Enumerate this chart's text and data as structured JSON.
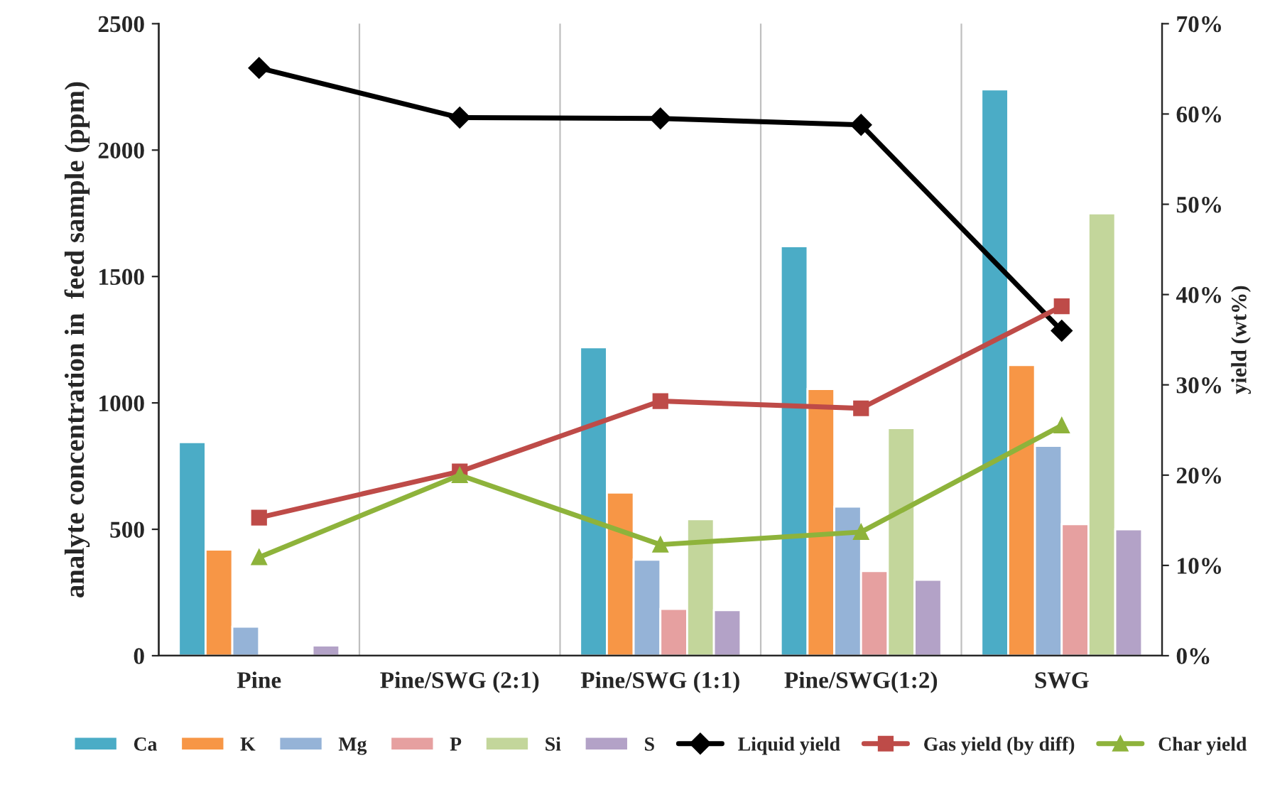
{
  "chart_data": {
    "type": "bar",
    "ylabel": "analyte concentration in  feed sample (ppm)",
    "y2label": "yield (wt%)",
    "categories": [
      "Pine",
      "Pine/SWG (2:1)",
      "Pine/SWG (1:1)",
      "Pine/SWG(1:2)",
      "SWG"
    ],
    "series": [
      {
        "name": "Ca",
        "color": "#4bacc6",
        "values": [
          845,
          null,
          1220,
          1620,
          2240
        ]
      },
      {
        "name": "K",
        "color": "#f79646",
        "values": [
          420,
          null,
          645,
          1055,
          1150
        ]
      },
      {
        "name": "Mg",
        "color": "#95b3d7",
        "values": [
          115,
          null,
          380,
          590,
          830
        ]
      },
      {
        "name": "P",
        "color": "#e6a0a0",
        "values": [
          null,
          null,
          185,
          335,
          520
        ]
      },
      {
        "name": "Si",
        "color": "#c3d69b",
        "values": [
          null,
          null,
          540,
          900,
          1750
        ]
      },
      {
        "name": "S",
        "color": "#b3a2c7",
        "values": [
          40,
          null,
          180,
          300,
          500
        ]
      },
      {
        "name": "Liquid yield",
        "type": "line",
        "axis": "y2",
        "marker": "diamond",
        "color": "#000000",
        "values": [
          65.1,
          59.6,
          59.5,
          58.8,
          36.0
        ]
      },
      {
        "name": "Gas yield (by diff)",
        "type": "line",
        "axis": "y2",
        "marker": "square",
        "color": "#be4b48",
        "values": [
          15.3,
          20.4,
          28.2,
          27.4,
          38.7
        ]
      },
      {
        "name": "Char yield",
        "type": "line",
        "axis": "y2",
        "marker": "triangle",
        "color": "#8eb33b",
        "values": [
          10.9,
          20.0,
          12.3,
          13.7,
          25.5
        ]
      }
    ],
    "ylim": [
      0,
      2500
    ],
    "yticks": [
      0,
      500,
      1000,
      1500,
      2000,
      2500
    ],
    "y2lim": [
      0,
      70
    ],
    "y2ticks": [
      {
        "value": 0,
        "label": "0%"
      },
      {
        "value": 10,
        "label": "10%"
      },
      {
        "value": 20,
        "label": "20%"
      },
      {
        "value": 30,
        "label": "30%"
      },
      {
        "value": 40,
        "label": "40%"
      },
      {
        "value": 50,
        "label": "50%"
      },
      {
        "value": 60,
        "label": "60%"
      },
      {
        "value": 70,
        "label": "70%"
      }
    ],
    "grid": "x",
    "legend": "bottom"
  }
}
